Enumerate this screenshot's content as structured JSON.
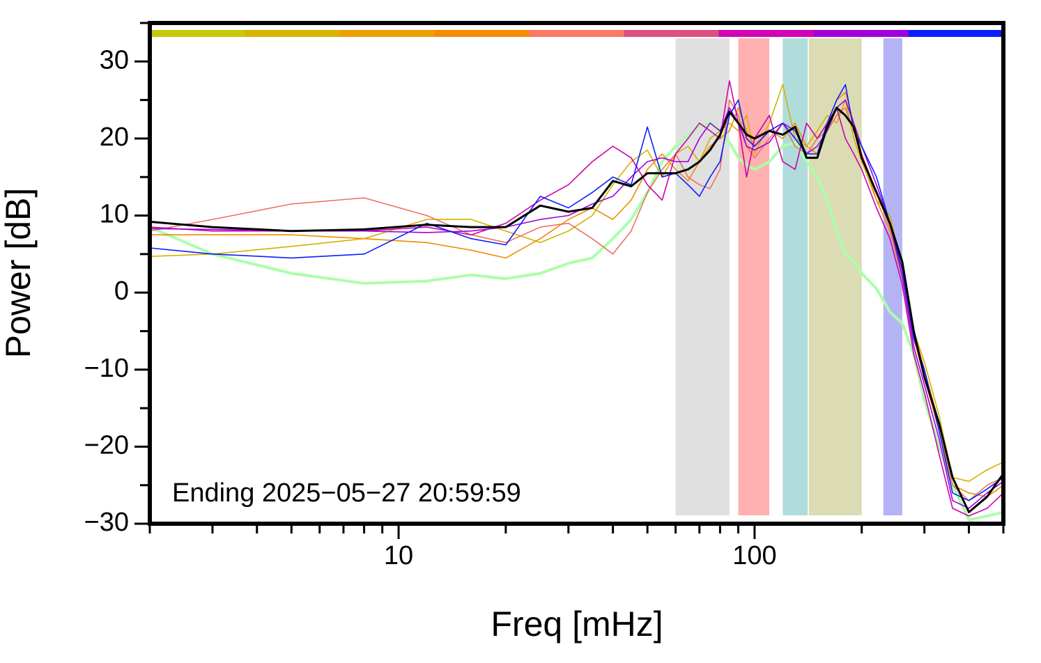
{
  "chart_data": {
    "type": "line",
    "xlabel": "Freq [mHz]",
    "ylabel": "Power [dB]",
    "annotation": "Ending 2025−05−27 20:59:59",
    "xscale": "log",
    "xlim": [
      2,
      500
    ],
    "ylim": [
      -30,
      35
    ],
    "xticks": [
      10,
      100
    ],
    "xminorticks": [
      2,
      3,
      4,
      5,
      6,
      7,
      8,
      9,
      20,
      30,
      40,
      50,
      60,
      70,
      80,
      90,
      200,
      300,
      400,
      500
    ],
    "yticks": [
      {
        "value": -30,
        "label": "−30"
      },
      {
        "value": -20,
        "label": "−20"
      },
      {
        "value": -10,
        "label": "−10"
      },
      0,
      10,
      20,
      30
    ],
    "yminorticks": [
      -25,
      -15,
      -5,
      5,
      15,
      25,
      35
    ],
    "colorbar": [
      "#c8c80a",
      "#d8b400",
      "#eca000",
      "#f58c00",
      "#fa7a64",
      "#dc5082",
      "#d200b4",
      "#a000dc",
      "#0a1eff"
    ],
    "bands": [
      {
        "xrange": [
          60,
          85
        ],
        "color": "#e0e0e0"
      },
      {
        "xrange": [
          90,
          110
        ],
        "color": "#ffb0b0"
      },
      {
        "xrange": [
          120,
          141
        ],
        "color": "#b0dcdc"
      },
      {
        "xrange": [
          142,
          200
        ],
        "color": "#dcdcb4"
      },
      {
        "xrange": [
          230,
          260
        ],
        "color": "#b4b4f5"
      }
    ],
    "x": [
      2,
      3,
      5,
      8,
      12,
      16,
      20,
      25,
      30,
      35,
      40,
      45,
      50,
      55,
      60,
      65,
      70,
      75,
      80,
      85,
      90,
      95,
      100,
      110,
      120,
      130,
      140,
      150,
      160,
      170,
      180,
      190,
      200,
      220,
      240,
      260,
      280,
      300,
      330,
      360,
      400,
      450,
      500
    ],
    "series": [
      {
        "color": "#aaffaa",
        "width": 4,
        "values": [
          8.5,
          5.0,
          2.5,
          1.2,
          1.5,
          2.3,
          1.8,
          2.5,
          3.8,
          4.5,
          7.0,
          9.5,
          13.0,
          17.0,
          19.0,
          20.5,
          21.5,
          22.0,
          21.0,
          19.5,
          17.5,
          16.5,
          16.0,
          17.0,
          19.0,
          19.5,
          17.0,
          15.0,
          12.0,
          8.0,
          5.0,
          4.0,
          2.5,
          0.5,
          -2.5,
          -4.0,
          -8.0,
          -14.0,
          -20.0,
          -25.0,
          -29.5,
          -29.0,
          -28.5
        ]
      },
      {
        "color": "#d4b000",
        "width": 1.6,
        "values": [
          4.7,
          5.0,
          6.0,
          7.0,
          9.5,
          9.5,
          8.0,
          6.5,
          8.0,
          10.0,
          14.0,
          17.0,
          18.5,
          15.0,
          18.0,
          19.0,
          17.0,
          20.0,
          21.0,
          22.0,
          21.0,
          23.0,
          18.0,
          22.0,
          27.0,
          20.0,
          19.0,
          21.0,
          23.0,
          22.0,
          25.0,
          20.0,
          17.0,
          12.0,
          10.0,
          3.0,
          -5.0,
          -9.0,
          -16.0,
          -24.0,
          -24.5,
          -23.0,
          -22.0
        ]
      },
      {
        "color": "#f08c00",
        "width": 1.6,
        "values": [
          7.5,
          7.5,
          7.5,
          7.0,
          6.5,
          5.5,
          4.5,
          7.0,
          9.5,
          11.0,
          9.5,
          12.0,
          16.0,
          18.0,
          16.0,
          14.5,
          17.0,
          19.0,
          20.0,
          21.0,
          24.0,
          21.0,
          19.0,
          21.0,
          20.0,
          22.0,
          19.0,
          18.0,
          22.0,
          25.0,
          26.0,
          22.0,
          18.0,
          12.0,
          8.0,
          2.0,
          -6.0,
          -11.0,
          -18.0,
          -25.0,
          -26.0,
          -26.5,
          -25.0
        ]
      },
      {
        "color": "#f07060",
        "width": 1.6,
        "values": [
          8.0,
          9.5,
          11.5,
          12.3,
          10.0,
          7.5,
          6.5,
          8.5,
          9.0,
          7.0,
          5.0,
          8.0,
          13.0,
          16.0,
          18.0,
          15.0,
          14.0,
          13.5,
          16.0,
          25.0,
          23.0,
          19.0,
          17.5,
          20.0,
          22.0,
          19.0,
          18.0,
          20.0,
          21.0,
          23.0,
          24.0,
          21.0,
          18.0,
          13.0,
          8.5,
          2.5,
          -5.0,
          -10.0,
          -17.0,
          -25.0,
          -27.0,
          -25.0,
          -24.0
        ]
      },
      {
        "color": "#cc00aa",
        "width": 1.6,
        "values": [
          8.5,
          8.0,
          8.0,
          8.0,
          8.5,
          7.5,
          9.0,
          12.0,
          14.0,
          17.0,
          19.0,
          17.5,
          14.0,
          12.0,
          18.0,
          20.0,
          22.0,
          21.0,
          20.0,
          27.5,
          22.0,
          15.0,
          20.0,
          23.0,
          17.0,
          16.0,
          22.0,
          20.0,
          22.0,
          24.0,
          20.0,
          18.0,
          16.0,
          11.0,
          7.0,
          1.0,
          -8.0,
          -13.0,
          -21.0,
          -28.0,
          -29.0,
          -28.0,
          -26.0
        ]
      },
      {
        "color": "#a000e0",
        "width": 1.6,
        "values": [
          8.3,
          8.2,
          8.0,
          8.0,
          7.8,
          8.0,
          8.5,
          9.5,
          10.0,
          11.5,
          12.5,
          15.0,
          17.0,
          17.5,
          17.0,
          17.0,
          20.0,
          22.0,
          21.0,
          24.0,
          22.0,
          19.0,
          18.5,
          19.5,
          22.0,
          21.0,
          18.0,
          19.0,
          21.0,
          24.0,
          25.0,
          22.0,
          19.0,
          14.0,
          9.0,
          2.0,
          -7.0,
          -12.0,
          -19.0,
          -27.0,
          -28.0,
          -26.0,
          -24.5
        ]
      },
      {
        "color": "#0a1eff",
        "width": 1.6,
        "values": [
          5.8,
          5.0,
          4.5,
          5.0,
          9.0,
          7.0,
          6.2,
          12.5,
          11.0,
          13.0,
          15.0,
          14.0,
          21.5,
          15.0,
          15.5,
          14.0,
          12.5,
          15.0,
          17.0,
          23.0,
          25.0,
          20.0,
          19.0,
          21.0,
          22.0,
          20.0,
          18.0,
          18.0,
          22.0,
          25.0,
          27.0,
          21.0,
          19.0,
          15.0,
          9.0,
          3.0,
          -6.0,
          -10.0,
          -18.0,
          -26.0,
          -27.0,
          -25.5,
          -24.0
        ]
      },
      {
        "color": "#000000",
        "width": 3,
        "values": [
          9.2,
          8.5,
          8.0,
          8.2,
          8.8,
          8.5,
          8.5,
          11.3,
          10.5,
          11.0,
          14.5,
          13.8,
          15.5,
          15.5,
          15.5,
          16.0,
          17.0,
          18.5,
          20.5,
          23.5,
          22.0,
          20.5,
          20.0,
          21.0,
          20.5,
          21.5,
          17.5,
          17.5,
          21.5,
          24.0,
          23.0,
          21.5,
          17.5,
          13.0,
          9.0,
          4.0,
          -5.0,
          -11.0,
          -17.0,
          -24.0,
          -28.5,
          -26.5,
          -23.5
        ]
      }
    ]
  }
}
